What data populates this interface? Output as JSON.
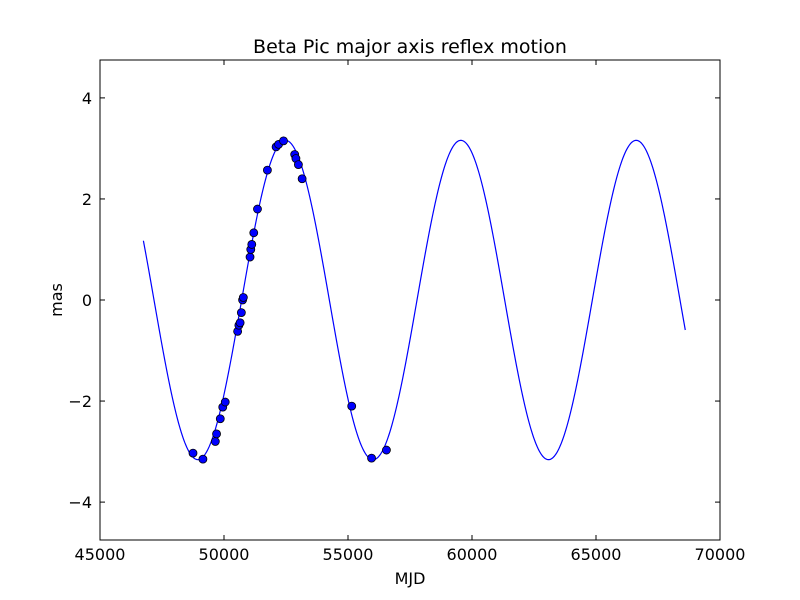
{
  "chart_data": {
    "type": "line",
    "title": "Beta Pic major axis reflex motion",
    "xlabel": "MJD",
    "ylabel": "mas",
    "xlim": [
      45000,
      70000
    ],
    "ylim": [
      -4.75,
      4.75
    ],
    "xticks": [
      45000,
      50000,
      55000,
      60000,
      65000,
      70000
    ],
    "xtick_labels": [
      "45000",
      "50000",
      "55000",
      "60000",
      "65000",
      "70000"
    ],
    "yticks": [
      4,
      2,
      0,
      -2,
      -4
    ],
    "ytick_labels": [
      "4",
      "2",
      "0",
      "−2",
      "−4"
    ],
    "grid": false,
    "legend": "none",
    "series": [
      {
        "kind": "model-curve",
        "color": "#0000ff",
        "model": {
          "form": "sinusoid",
          "amplitude": 3.16,
          "period": 7070,
          "peak_x": 52480,
          "x_start": 46750,
          "x_end": 68600
        }
      },
      {
        "kind": "observations",
        "color": "#0000ff",
        "x": [
          48750,
          49150,
          49650,
          49700,
          49850,
          49950,
          50050,
          50550,
          50600,
          50650,
          50700,
          50750,
          50780,
          51050,
          51080,
          51120,
          51200,
          51350,
          51750,
          52100,
          52200,
          52400,
          52850,
          52900,
          53000,
          53150,
          55150,
          55950,
          56550
        ],
        "y": [
          -3.03,
          -3.15,
          -2.8,
          -2.65,
          -2.35,
          -2.12,
          -2.02,
          -0.62,
          -0.5,
          -0.45,
          -0.25,
          0.0,
          0.05,
          0.85,
          1.0,
          1.1,
          1.33,
          1.8,
          2.57,
          3.03,
          3.08,
          3.15,
          2.88,
          2.8,
          2.68,
          2.4,
          -2.1,
          -3.13,
          -2.97
        ]
      }
    ]
  }
}
